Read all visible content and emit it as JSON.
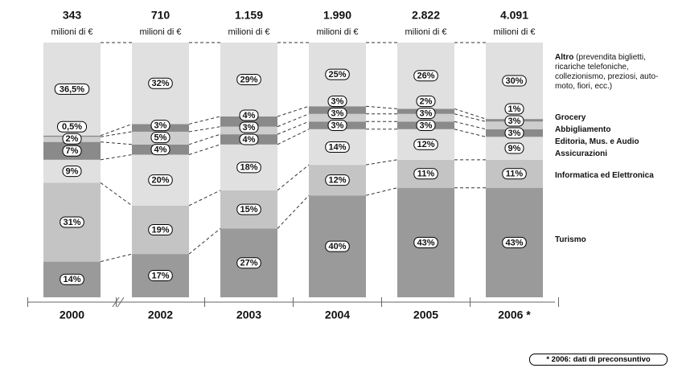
{
  "chart_data": {
    "type": "stacked-bar-100",
    "categories": [
      "2000",
      "2002",
      "2003",
      "2004",
      "2005",
      "2006 *"
    ],
    "totals": {
      "values": [
        343,
        710,
        1159,
        1990,
        2822,
        4091
      ],
      "value_labels": [
        "343",
        "710",
        "1.159",
        "1.990",
        "2.822",
        "4.091"
      ],
      "unit": "milioni di €"
    },
    "ylim": [
      0,
      100
    ],
    "series": [
      {
        "name": "Turismo",
        "color": "#9a9a9a",
        "values": [
          14,
          17,
          27,
          40,
          43,
          43
        ],
        "value_labels": [
          "14%",
          "17%",
          "27%",
          "40%",
          "43%",
          "43%"
        ]
      },
      {
        "name": "Informatica ed Elettronica",
        "color": "#c4c4c4",
        "values": [
          31,
          19,
          15,
          12,
          11,
          11
        ],
        "value_labels": [
          "31%",
          "19%",
          "15%",
          "12%",
          "11%",
          "11%"
        ]
      },
      {
        "name": "Assicurazioni",
        "color": "#e0e0e0",
        "values": [
          9,
          20,
          18,
          14,
          12,
          9
        ],
        "value_labels": [
          "9%",
          "20%",
          "18%",
          "14%",
          "12%",
          "9%"
        ]
      },
      {
        "name": "Editoria, Mus. e Audio",
        "color": "#8a8a8a",
        "values": [
          7,
          4,
          4,
          3,
          3,
          3
        ],
        "value_labels": [
          "7%",
          "4%",
          "4%",
          "3%",
          "3%",
          "3%"
        ]
      },
      {
        "name": "Abbigliamento",
        "color": "#cdcdcd",
        "values": [
          2,
          5,
          3,
          3,
          3,
          3
        ],
        "value_labels": [
          "2%",
          "5%",
          "3%",
          "3%",
          "3%",
          "3%"
        ]
      },
      {
        "name": "Grocery",
        "color": "#8a8a8a",
        "values": [
          0.5,
          3,
          4,
          3,
          2,
          1
        ],
        "value_labels": [
          "0,5%",
          "3%",
          "4%",
          "3%",
          "2%",
          "1%"
        ]
      },
      {
        "name": "Altro",
        "note": "(prevendita biglietti, ricariche telefoniche, collezionismo, preziosi, auto-moto, fiori, ecc.)",
        "color": "#e0e0e0",
        "values": [
          36.5,
          32,
          29,
          25,
          26,
          30
        ],
        "value_labels": [
          "36,5%",
          "32%",
          "29%",
          "25%",
          "26%",
          "30%"
        ]
      }
    ],
    "footnote": "* 2006: dati di preconsuntivo"
  }
}
